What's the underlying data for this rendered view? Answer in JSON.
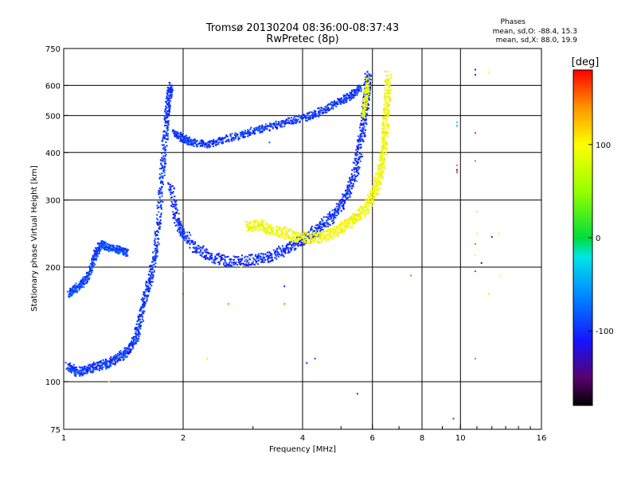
{
  "header": {
    "title_line1": "Tromsø 20130204 08:36:00-08:37:43",
    "title_line2": "RwPretec (8p)",
    "phases_title": "Phases",
    "stat_o": "mean, sd,O: -88.4, 15.3",
    "stat_x": "mean, sd,X:  88.0, 19.9"
  },
  "colorbar": {
    "label": "[deg]",
    "ticks": [
      {
        "value": 100,
        "label": "100"
      },
      {
        "value": 0,
        "label": "0"
      },
      {
        "value": -100,
        "label": "-100"
      }
    ],
    "range": [
      -180,
      180
    ],
    "colormap": "rainbow: black-purple-blue-cyan-green-yellow-orange-red"
  },
  "chart_data": {
    "type": "scatter",
    "title": "Tromsø 20130204 08:36:00-08:37:43",
    "subtitle": "RwPretec (8p)",
    "xlabel": "Frequency [MHz]",
    "ylabel": "Stationary phase Virtual Height [km]",
    "xscale": "log",
    "yscale": "log",
    "xlim": [
      1,
      16
    ],
    "ylim": [
      75,
      750
    ],
    "grid": true,
    "xticks": [
      {
        "value": 1,
        "label": "1"
      },
      {
        "value": 2,
        "label": "2"
      },
      {
        "value": 4,
        "label": "4"
      },
      {
        "value": 6,
        "label": "6"
      },
      {
        "value": 8,
        "label": "8"
      },
      {
        "value": 10,
        "label": "10"
      },
      {
        "value": 16,
        "label": "16"
      }
    ],
    "xgrid": [
      2,
      4,
      6,
      8,
      10
    ],
    "xminor_ticks": [
      3,
      5,
      7,
      9,
      11,
      12,
      13,
      14,
      15
    ],
    "yticks": [
      {
        "value": 75,
        "label": "75"
      },
      {
        "value": 100,
        "label": "100"
      },
      {
        "value": 200,
        "label": "200"
      },
      {
        "value": 300,
        "label": "300"
      },
      {
        "value": 400,
        "label": "400"
      },
      {
        "value": 500,
        "label": "500"
      },
      {
        "value": 600,
        "label": "600"
      },
      {
        "value": 750,
        "label": "750"
      }
    ],
    "ygrid": [
      100,
      200,
      300,
      400,
      500,
      600
    ],
    "traces": [
      {
        "name": "",
        "phase": -95,
        "jitter": 0.025,
        "points": [
          [
            1.02,
            110
          ],
          [
            1.08,
            106
          ],
          [
            1.15,
            108
          ],
          [
            1.22,
            110
          ],
          [
            1.3,
            112
          ],
          [
            1.38,
            116
          ],
          [
            1.45,
            120
          ],
          [
            1.52,
            130
          ],
          [
            1.56,
            145
          ],
          [
            1.6,
            165
          ],
          [
            1.65,
            185
          ],
          [
            1.7,
            215
          ],
          [
            1.74,
            270
          ],
          [
            1.77,
            350
          ],
          [
            1.8,
            430
          ],
          [
            1.82,
            500
          ],
          [
            1.84,
            560
          ],
          [
            1.86,
            600
          ]
        ]
      },
      {
        "name": "",
        "phase": -100,
        "jitter": 0.03,
        "points": [
          [
            1.86,
            330
          ],
          [
            1.92,
            270
          ],
          [
            2.0,
            245
          ],
          [
            2.15,
            225
          ],
          [
            2.35,
            212
          ],
          [
            2.6,
            207
          ],
          [
            2.9,
            208
          ],
          [
            3.2,
            212
          ],
          [
            3.5,
            218
          ],
          [
            3.8,
            228
          ],
          [
            4.1,
            240
          ],
          [
            4.4,
            252
          ],
          [
            4.7,
            268
          ],
          [
            5.0,
            290
          ],
          [
            5.25,
            320
          ],
          [
            5.45,
            360
          ],
          [
            5.6,
            420
          ],
          [
            5.7,
            480
          ],
          [
            5.78,
            540
          ],
          [
            5.83,
            600
          ],
          [
            5.86,
            640
          ]
        ]
      },
      {
        "name": "",
        "phase": 95,
        "jitter": 0.03,
        "points": [
          [
            2.9,
            255
          ],
          [
            3.1,
            258
          ],
          [
            3.3,
            252
          ],
          [
            3.6,
            246
          ],
          [
            3.9,
            240
          ],
          [
            4.2,
            238
          ],
          [
            4.5,
            240
          ],
          [
            4.8,
            246
          ],
          [
            5.1,
            256
          ],
          [
            5.4,
            268
          ],
          [
            5.7,
            282
          ],
          [
            5.95,
            300
          ],
          [
            6.15,
            325
          ],
          [
            6.3,
            360
          ],
          [
            6.4,
            400
          ],
          [
            6.45,
            450
          ],
          [
            6.5,
            500
          ],
          [
            6.55,
            560
          ],
          [
            6.58,
            640
          ]
        ]
      },
      {
        "name": "",
        "phase": -90,
        "jitter": 0.02,
        "points": [
          [
            1.03,
            170
          ],
          [
            1.07,
            175
          ],
          [
            1.12,
            182
          ],
          [
            1.17,
            195
          ],
          [
            1.2,
            215
          ],
          [
            1.24,
            230
          ],
          [
            1.3,
            225
          ],
          [
            1.38,
            222
          ],
          [
            1.45,
            218
          ]
        ]
      },
      {
        "name": "",
        "phase": -95,
        "jitter": 0.02,
        "points": [
          [
            1.9,
            450
          ],
          [
            2.0,
            435
          ],
          [
            2.1,
            425
          ],
          [
            2.3,
            420
          ],
          [
            2.5,
            430
          ],
          [
            2.8,
            445
          ],
          [
            3.1,
            460
          ],
          [
            3.4,
            470
          ],
          [
            3.8,
            485
          ],
          [
            4.2,
            500
          ],
          [
            4.6,
            520
          ],
          [
            5.0,
            545
          ],
          [
            5.3,
            565
          ],
          [
            5.6,
            590
          ]
        ]
      },
      {
        "name": "",
        "phase": 90,
        "jitter": 0.02,
        "points": [
          [
            5.7,
            500
          ],
          [
            5.78,
            560
          ],
          [
            5.85,
            620
          ]
        ]
      }
    ],
    "scattered_points": [
      [
        10.9,
        640,
        -100
      ],
      [
        10.9,
        660,
        -100
      ],
      [
        11.8,
        650,
        100
      ],
      [
        10.9,
        450,
        170
      ],
      [
        10.9,
        380,
        150
      ],
      [
        9.8,
        480,
        -20
      ],
      [
        9.8,
        470,
        -40
      ],
      [
        9.8,
        370,
        150
      ],
      [
        9.8,
        355,
        170
      ],
      [
        9.8,
        360,
        -110
      ],
      [
        11.0,
        280,
        110
      ],
      [
        11.0,
        245,
        100
      ],
      [
        10.9,
        230,
        150
      ],
      [
        10.9,
        215,
        100
      ],
      [
        10.9,
        195,
        170
      ],
      [
        11.3,
        205,
        -140
      ],
      [
        12.0,
        240,
        -100
      ],
      [
        12.5,
        245,
        100
      ],
      [
        12.6,
        190,
        100
      ],
      [
        11.8,
        170,
        110
      ],
      [
        10.9,
        115,
        -40
      ],
      [
        9.6,
        80,
        -90
      ],
      [
        7.5,
        190,
        150
      ],
      [
        5.5,
        93,
        -100
      ],
      [
        4.1,
        112,
        -110
      ],
      [
        4.3,
        115,
        -90
      ],
      [
        3.6,
        178,
        -130
      ],
      [
        3.6,
        160,
        150
      ],
      [
        2.6,
        160,
        150
      ],
      [
        2.3,
        115,
        110
      ],
      [
        2.0,
        195,
        140
      ],
      [
        2.0,
        170,
        170
      ],
      [
        2.8,
        200,
        110
      ],
      [
        2.9,
        200,
        150
      ],
      [
        3.3,
        425,
        -80
      ],
      [
        1.3,
        100,
        110
      ]
    ]
  }
}
